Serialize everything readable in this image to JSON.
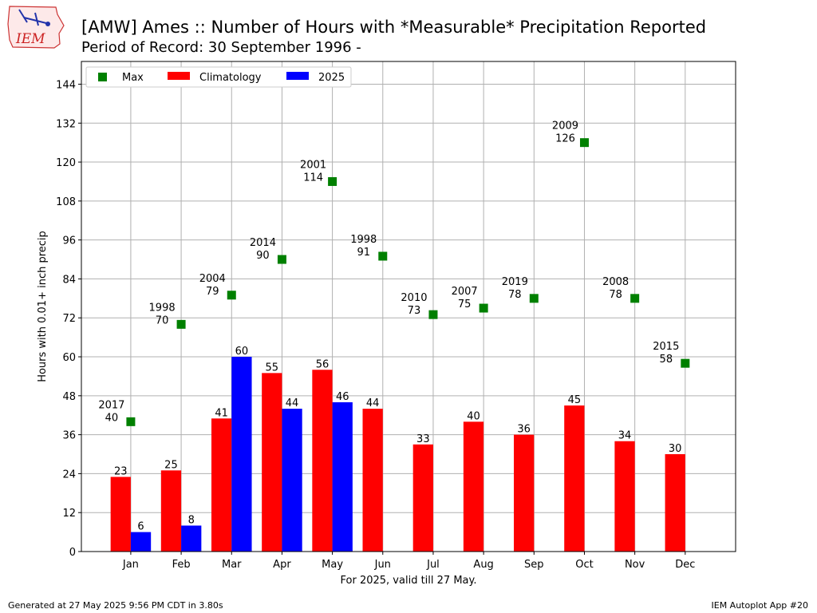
{
  "header": {
    "title": "[AMW] Ames :: Number of Hours with *Measurable* Precipitation Reported",
    "subtitle": "Period of Record: 30 September 1996 -",
    "logo_text": "IEM"
  },
  "footer": {
    "left": "Generated at 27 May 2025 9:56 PM CDT in 3.80s",
    "right": "IEM Autoplot App #20"
  },
  "chart_data": {
    "type": "bar",
    "title": "[AMW] Ames :: Number of Hours with *Measurable* Precipitation Reported",
    "subtitle": "Period of Record: 30 September 1996 -",
    "xlabel": "For 2025, valid till 27 May.",
    "ylabel": "Hours with 0.01+ inch precip",
    "categories": [
      "Jan",
      "Feb",
      "Mar",
      "Apr",
      "May",
      "Jun",
      "Jul",
      "Aug",
      "Sep",
      "Oct",
      "Nov",
      "Dec"
    ],
    "ylim": [
      0,
      151
    ],
    "yticks": [
      0,
      12,
      24,
      36,
      48,
      60,
      72,
      84,
      96,
      108,
      120,
      132,
      144
    ],
    "grid": true,
    "legend_position": "top-left",
    "series": [
      {
        "name": "Climatology",
        "type": "bar",
        "color": "#ff0000",
        "values": [
          23,
          25,
          41,
          55,
          56,
          44,
          33,
          40,
          36,
          45,
          34,
          30
        ]
      },
      {
        "name": "2025",
        "type": "bar",
        "color": "#0000ff",
        "values": [
          6,
          8,
          60,
          44,
          46,
          null,
          null,
          null,
          null,
          null,
          null,
          null
        ]
      },
      {
        "name": "Max",
        "type": "scatter",
        "color": "#008000",
        "values": [
          40,
          70,
          79,
          90,
          114,
          91,
          73,
          75,
          78,
          126,
          78,
          58
        ],
        "years": [
          "2017",
          "1998",
          "2004",
          "2014",
          "2001",
          "1998",
          "2010",
          "2007",
          "2019",
          "2009",
          "2008",
          "2015"
        ]
      }
    ]
  }
}
